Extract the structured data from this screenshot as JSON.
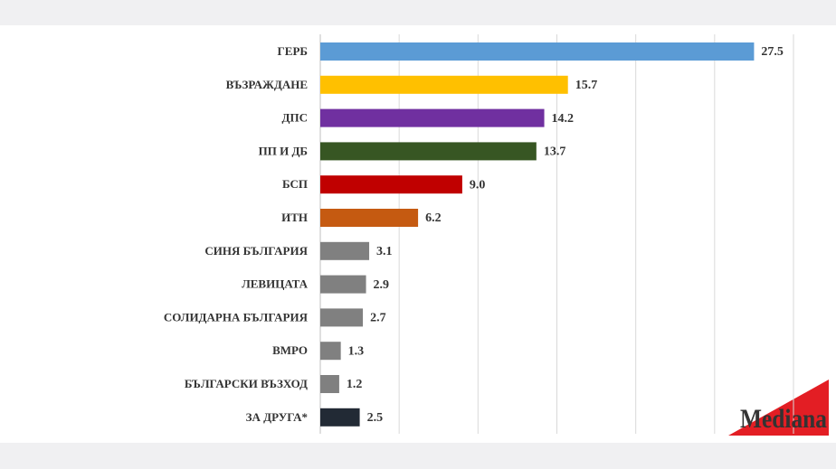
{
  "chart_data": {
    "type": "hbar",
    "categories": [
      "ГЕРБ",
      "ВЪЗРАЖДАНЕ",
      "ДПС",
      "ПП И ДБ",
      "БСП",
      "ИТН",
      "СИНЯ БЪЛГАРИЯ",
      "ЛЕВИЦАТА",
      "СОЛИДАРНА БЪЛГАРИЯ",
      "ВМРО",
      "БЪЛГАРСКИ ВЪЗХОД",
      "ЗА ДРУГА*"
    ],
    "values": [
      27.5,
      15.7,
      14.2,
      13.7,
      9.0,
      6.2,
      3.1,
      2.9,
      2.7,
      1.3,
      1.2,
      2.5
    ],
    "value_labels": [
      "27.5",
      "15.7",
      "14.2",
      "13.7",
      "9.0",
      "6.2",
      "3.1",
      "2.9",
      "2.7",
      "1.3",
      "1.2",
      "2.5"
    ],
    "colors": [
      "#5b9bd5",
      "#ffc000",
      "#7030a0",
      "#375623",
      "#c00000",
      "#c55a11",
      "#808080",
      "#808080",
      "#808080",
      "#808080",
      "#808080",
      "#222a35"
    ],
    "xlim": [
      0,
      30
    ],
    "xticks": [
      0,
      5,
      10,
      15,
      20,
      25,
      30
    ],
    "grid": true,
    "logo": "Mediana"
  }
}
